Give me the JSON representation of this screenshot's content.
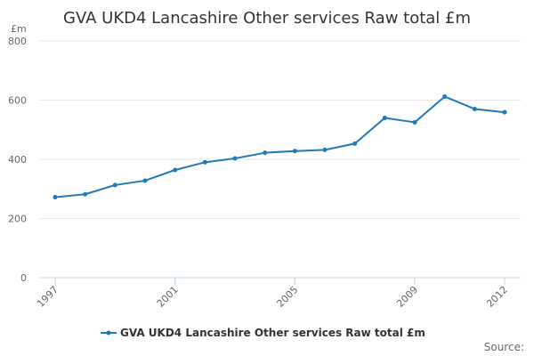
{
  "chart_data": {
    "type": "line",
    "title": "GVA UKD4 Lancashire Other services Raw total £m",
    "y_unit": "£m",
    "x": [
      1997,
      1998,
      1999,
      2000,
      2001,
      2002,
      2003,
      2004,
      2005,
      2006,
      2007,
      2008,
      2009,
      2010,
      2011,
      2012
    ],
    "x_tick_labels": [
      "1997",
      "2001",
      "2005",
      "2009",
      "2012"
    ],
    "y_ticks": [
      0,
      200,
      400,
      600,
      800
    ],
    "ylim": [
      0,
      800
    ],
    "grid": true,
    "legend_position": "bottom-center",
    "series": [
      {
        "name": "GVA UKD4 Lancashire Other services Raw total £m",
        "color": "#1f7ab8",
        "values": [
          272,
          282,
          313,
          328,
          364,
          390,
          403,
          422,
          428,
          432,
          453,
          540,
          525,
          612,
          570,
          559
        ]
      }
    ]
  },
  "source_label": "Source:"
}
